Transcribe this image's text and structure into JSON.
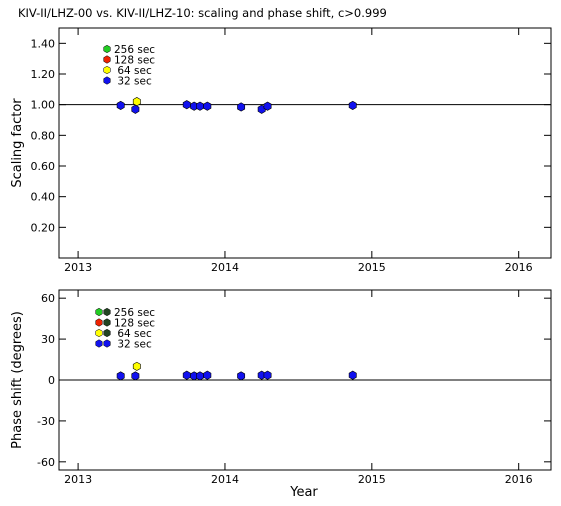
{
  "figure": {
    "title": "KIV-II/LHZ-00 vs. KIV-II/LHZ-10: scaling and phase shift, c>0.999",
    "xlabel": "Year"
  },
  "colors": {
    "s256": "#22cc22",
    "s128": "#ee2200",
    "s64": "#ffff00",
    "s32": "#1111ee",
    "phase_companion": "#224422"
  },
  "chart_data": [
    {
      "type": "scatter",
      "ylabel": "Scaling factor",
      "xlim": [
        2012.87,
        2016.22
      ],
      "ylim": [
        0.0,
        1.5
      ],
      "x_ticks": [
        2013,
        2014,
        2015,
        2016
      ],
      "x_tick_labels": [
        "2013",
        "2014",
        "2015",
        "2016"
      ],
      "y_ticks": [
        0.2,
        0.4,
        0.6,
        0.8,
        1.0,
        1.2,
        1.4
      ],
      "y_tick_labels": [
        "0.20",
        "0.40",
        "0.60",
        "0.80",
        "1.00",
        "1.20",
        "1.40"
      ],
      "reference_line": 1.0,
      "legend": [
        {
          "label": "256 sec",
          "color": "s256"
        },
        {
          "label": "128 sec",
          "color": "s128"
        },
        {
          "label": " 64 sec",
          "color": "s64"
        },
        {
          "label": " 32 sec",
          "color": "s32"
        }
      ],
      "series": [
        {
          "name": "64 sec",
          "color": "s64",
          "points": [
            [
              2013.4,
              1.02
            ]
          ]
        },
        {
          "name": "32 sec",
          "color": "s32",
          "points": [
            [
              2013.29,
              0.995
            ],
            [
              2013.39,
              0.97
            ],
            [
              2013.74,
              1.0
            ],
            [
              2013.79,
              0.99
            ],
            [
              2013.83,
              0.99
            ],
            [
              2013.88,
              0.99
            ],
            [
              2014.11,
              0.985
            ],
            [
              2014.25,
              0.97
            ],
            [
              2014.29,
              0.99
            ],
            [
              2014.87,
              0.995
            ]
          ]
        }
      ]
    },
    {
      "type": "scatter",
      "ylabel": "Phase shift (degrees)",
      "xlim": [
        2012.87,
        2016.22
      ],
      "ylim": [
        -66,
        66
      ],
      "x_ticks": [
        2013,
        2014,
        2015,
        2016
      ],
      "x_tick_labels": [
        "2013",
        "2014",
        "2015",
        "2016"
      ],
      "y_ticks": [
        -60,
        -30,
        0,
        30,
        60
      ],
      "y_tick_labels": [
        "-60",
        "-30",
        "0",
        "30",
        "60"
      ],
      "reference_line": 0,
      "legend": [
        {
          "label": "256 sec",
          "color": "s256"
        },
        {
          "label": "128 sec",
          "color": "s128"
        },
        {
          "label": " 64 sec",
          "color": "s64"
        },
        {
          "label": " 32 sec",
          "color": "s32"
        }
      ],
      "series": [
        {
          "name": "64 sec",
          "color": "s64",
          "points": [
            [
              2013.4,
              10
            ]
          ]
        },
        {
          "name": "32 sec",
          "color": "s32",
          "points": [
            [
              2013.29,
              3
            ],
            [
              2013.39,
              3
            ],
            [
              2013.74,
              3.5
            ],
            [
              2013.79,
              3
            ],
            [
              2013.83,
              3
            ],
            [
              2013.88,
              3.5
            ],
            [
              2014.11,
              3
            ],
            [
              2014.25,
              3.5
            ],
            [
              2014.29,
              3.5
            ],
            [
              2014.87,
              3.5
            ]
          ]
        }
      ]
    }
  ]
}
